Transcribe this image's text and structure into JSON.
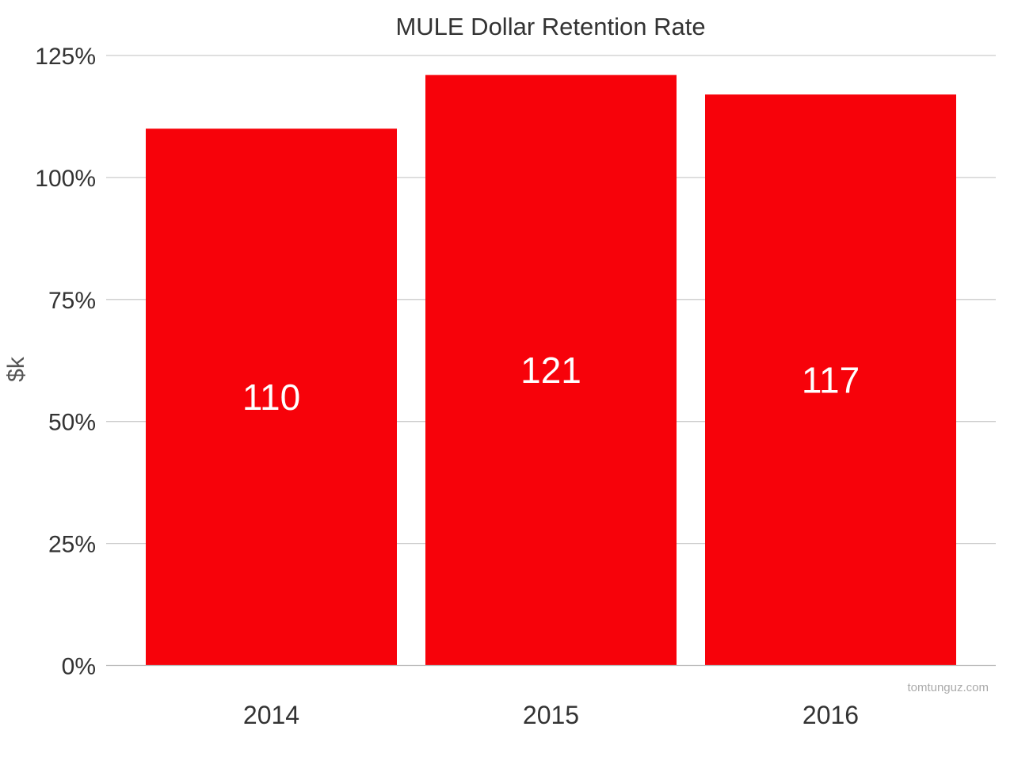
{
  "chart_data": {
    "type": "bar",
    "title": "MULE Dollar Retention Rate",
    "xlabel": "",
    "ylabel": "$k",
    "categories": [
      "2014",
      "2015",
      "2016"
    ],
    "values": [
      110,
      121,
      117
    ],
    "data_labels": [
      "110",
      "121",
      "117"
    ],
    "ylim": [
      0,
      125
    ],
    "yticks": [
      0,
      25,
      50,
      75,
      100,
      125
    ],
    "ytick_labels": [
      "0%",
      "25%",
      "50%",
      "75%",
      "100%",
      "125%"
    ],
    "grid": "horizontal",
    "legend": "none",
    "bar_color": "#f7020a"
  },
  "watermark": "tomtunguz.com"
}
